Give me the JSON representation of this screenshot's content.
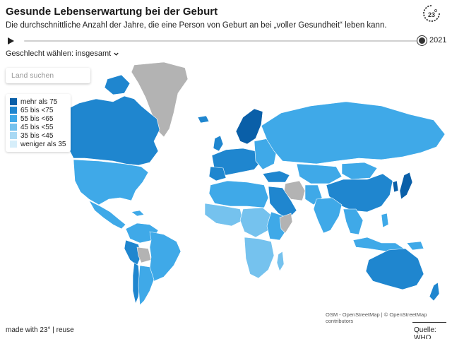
{
  "header": {
    "title": "Gesunde Lebenserwartung bei der Geburt",
    "subtitle": "Die durchschnittliche Anzahl der Jahre, die eine Person von Geburt an bei „voller Gesundheit“ leben kann."
  },
  "timeline": {
    "year": "2021",
    "progress": 1.0
  },
  "selector": {
    "label": "Geschlecht wählen: insgesamt"
  },
  "search": {
    "placeholder": "Land suchen"
  },
  "legend": {
    "items": [
      {
        "label": "mehr als 75",
        "color": "#0a5fa8"
      },
      {
        "label": "65 bis <75",
        "color": "#1f86cf"
      },
      {
        "label": "55 bis <65",
        "color": "#3fa9e8"
      },
      {
        "label": "45 bis <55",
        "color": "#75c2ee"
      },
      {
        "label": "35 bis <45",
        "color": "#a9d9f4"
      },
      {
        "label": "weniger als 35",
        "color": "#d6eefa"
      }
    ]
  },
  "map": {
    "no_data_color": "#b3b3b3",
    "border_color": "#ffffff"
  },
  "credits": "OSM - OpenStreetMap | © OpenStreetMap contributors",
  "footer": {
    "made_with": "made with 23° | reuse",
    "source": "Quelle: WHO"
  }
}
